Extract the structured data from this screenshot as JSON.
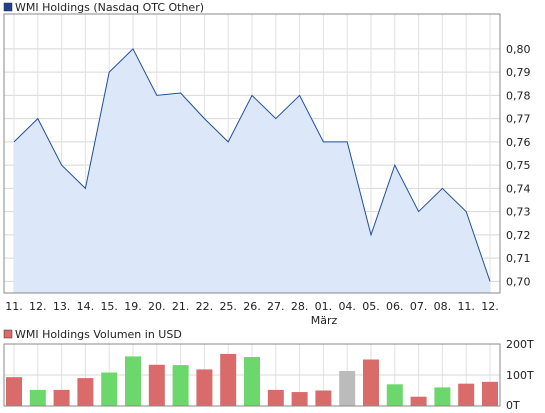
{
  "chart_data": [
    {
      "type": "area",
      "title": "WMI Holdings (Nasdaq OTC Other)",
      "legend_color": "#1f3f8f",
      "line_color": "#1f4e9c",
      "fill_color": "#dce8fa",
      "categories": [
        "11.",
        "12.",
        "13.",
        "14.",
        "15.",
        "19.",
        "20.",
        "21.",
        "22.",
        "25.",
        "26.",
        "27.",
        "28.",
        "01.",
        "04.",
        "05.",
        "06.",
        "07.",
        "08.",
        "11.",
        "12."
      ],
      "month_label": "März",
      "values": [
        0.76,
        0.77,
        0.75,
        0.74,
        0.79,
        0.8,
        0.78,
        0.781,
        0.77,
        0.76,
        0.78,
        0.77,
        0.78,
        0.76,
        0.76,
        0.72,
        0.75,
        0.73,
        0.74,
        0.73,
        0.7
      ],
      "ylim": [
        0.695,
        0.815
      ],
      "yticks": [
        "0,70",
        "0,71",
        "0,72",
        "0,73",
        "0,74",
        "0,75",
        "0,76",
        "0,77",
        "0,78",
        "0,79",
        "0,80"
      ],
      "grid": true,
      "axis_position": "right"
    },
    {
      "type": "bar",
      "title": "WMI Holdings Volumen in USD",
      "legend_color": "#d96b6b",
      "colors": {
        "up": "#6cd86c",
        "down": "#d96b6b",
        "neutral": "#bbbbbb"
      },
      "values": [
        93,
        52,
        52,
        90,
        108,
        160,
        133,
        132,
        118,
        168,
        158,
        52,
        45,
        50,
        113,
        150,
        70,
        30,
        60,
        72,
        78
      ],
      "directions": [
        "down",
        "up",
        "down",
        "down",
        "up",
        "up",
        "down",
        "up",
        "down",
        "down",
        "up",
        "down",
        "down",
        "down",
        "neutral",
        "down",
        "up",
        "down",
        "up",
        "down",
        "down"
      ],
      "ylim": [
        0,
        200
      ],
      "yticks": [
        "0T",
        "100T",
        "200T"
      ],
      "grid": true,
      "axis_position": "right"
    }
  ]
}
